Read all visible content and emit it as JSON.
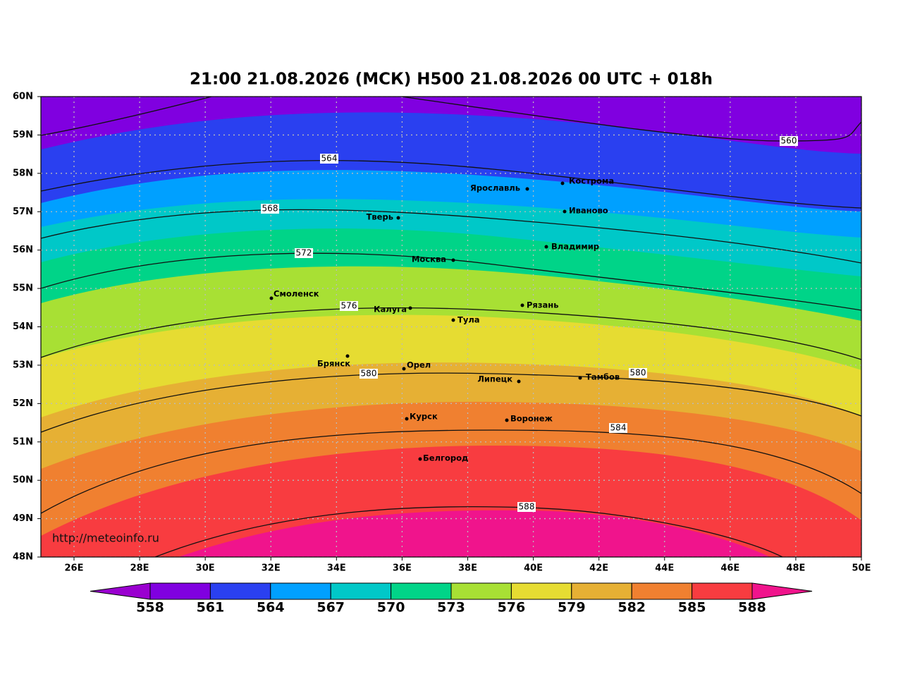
{
  "title": "21:00 21.08.2026 (МСК) H500  21.08.2026 00 UTC + 018h",
  "map": {
    "lon_ticks": [
      {
        "value": 26,
        "label": "26E"
      },
      {
        "value": 28,
        "label": "28E"
      },
      {
        "value": 30,
        "label": "30E"
      },
      {
        "value": 32,
        "label": "32E"
      },
      {
        "value": 34,
        "label": "34E"
      },
      {
        "value": 36,
        "label": "36E"
      },
      {
        "value": 38,
        "label": "38E"
      },
      {
        "value": 40,
        "label": "40E"
      },
      {
        "value": 42,
        "label": "42E"
      },
      {
        "value": 44,
        "label": "44E"
      },
      {
        "value": 46,
        "label": "46E"
      },
      {
        "value": 48,
        "label": "48E"
      },
      {
        "value": 50,
        "label": "50E"
      }
    ],
    "lat_ticks": [
      {
        "value": 48,
        "label": "48N"
      },
      {
        "value": 49,
        "label": "49N"
      },
      {
        "value": 50,
        "label": "50N"
      },
      {
        "value": 51,
        "label": "51N"
      },
      {
        "value": 52,
        "label": "52N"
      },
      {
        "value": 53,
        "label": "53N"
      },
      {
        "value": 54,
        "label": "54N"
      },
      {
        "value": 55,
        "label": "55N"
      },
      {
        "value": 56,
        "label": "56N"
      },
      {
        "value": 57,
        "label": "57N"
      },
      {
        "value": 58,
        "label": "58N"
      },
      {
        "value": 59,
        "label": "59N"
      },
      {
        "value": 60,
        "label": "60N"
      }
    ],
    "grid": true,
    "cities": [
      "Кострома",
      "Ярославль",
      "Иваново",
      "Тверь",
      "Владимир",
      "Москва",
      "Смоленск",
      "Рязань",
      "Калуга",
      "Тула",
      "Брянск",
      "Орел",
      "Липецк",
      "Тамбов",
      "Курск",
      "Воронеж",
      "Белгород"
    ],
    "contour_labels": [
      560,
      564,
      568,
      572,
      576,
      580,
      580,
      584,
      588
    ],
    "watermark": "http://meteoinfo.ru"
  },
  "colorbar": {
    "ticks": [
      558,
      561,
      564,
      567,
      570,
      573,
      576,
      579,
      582,
      585,
      588
    ],
    "colors": [
      "#9a00d0",
      "#8000e0",
      "#2a40f0",
      "#00a0ff",
      "#00c8c8",
      "#00d488",
      "#a8e034",
      "#e6dc32",
      "#e6b034",
      "#f08030",
      "#f83c40",
      "#f0148c"
    ]
  }
}
